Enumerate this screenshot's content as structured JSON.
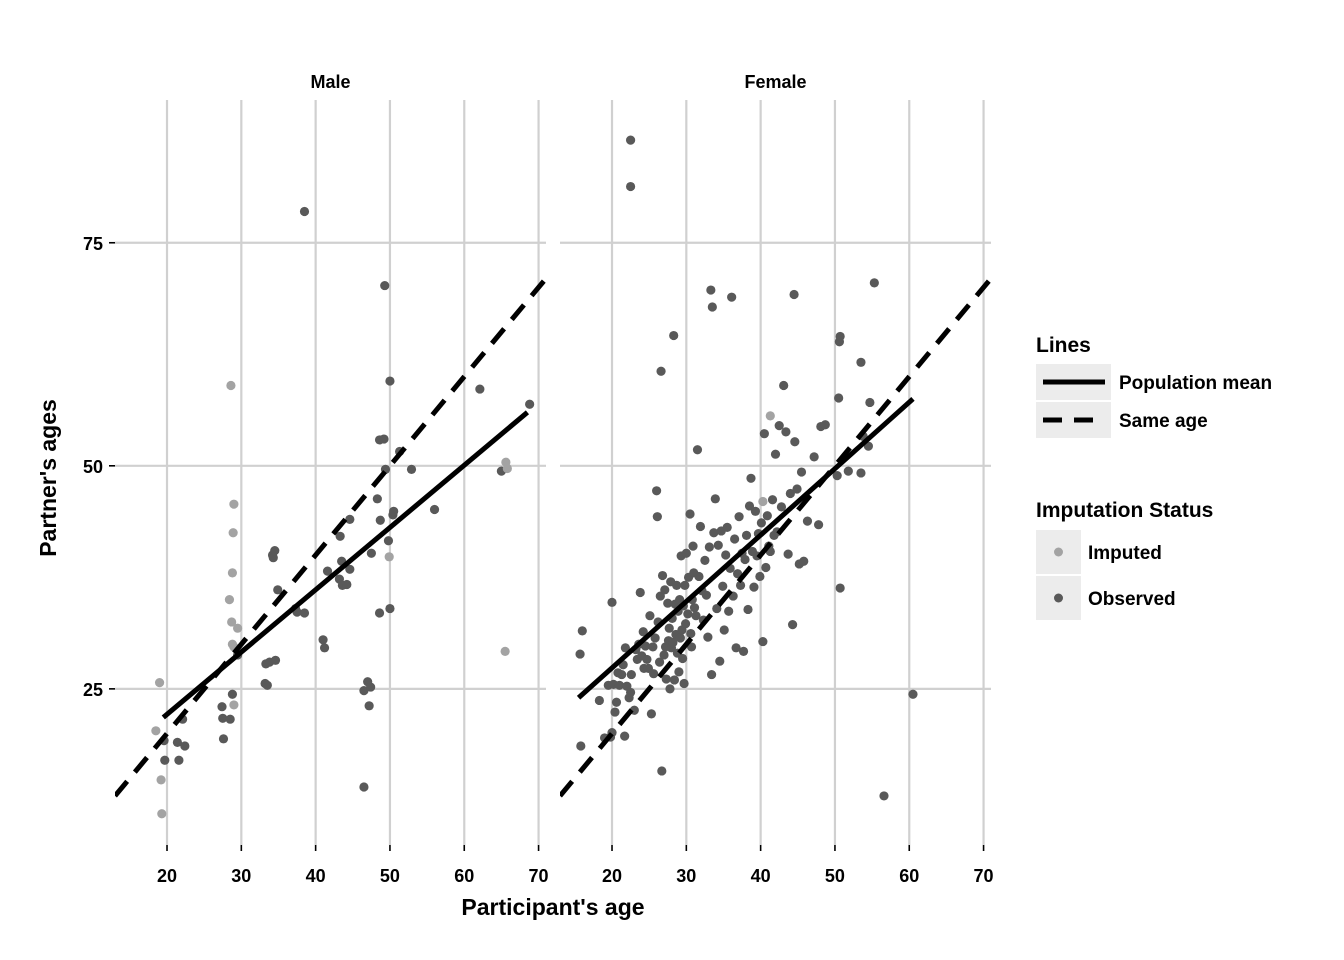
{
  "chart_data": {
    "type": "scatter",
    "xlabel": "Participant's age",
    "ylabel": "Partner's ages",
    "xlim": [
      13,
      71
    ],
    "ylim": [
      7.5,
      91
    ],
    "x_ticks": [
      20,
      30,
      40,
      50,
      60,
      70
    ],
    "y_ticks": [
      25,
      50,
      75
    ],
    "grid": true,
    "legend_position": "right",
    "colors": {
      "imputed": "#a3a3a3",
      "observed": "#595959",
      "grid": "#d0d0d0",
      "line": "#000000"
    },
    "legend": {
      "lines": {
        "title": "Lines",
        "items": [
          {
            "label": "Population mean",
            "style": "solid"
          },
          {
            "label": "Same age",
            "style": "dashed"
          }
        ]
      },
      "status": {
        "title": "Imputation Status",
        "items": [
          {
            "label": "Imputed",
            "key": "imputed"
          },
          {
            "label": "Observed",
            "key": "observed"
          }
        ]
      }
    },
    "panels": [
      {
        "label": "Male",
        "population_mean": [
          [
            19.5,
            21.8
          ],
          [
            68.5,
            56.0
          ]
        ],
        "same_age": [
          [
            13,
            13
          ],
          [
            71,
            71
          ]
        ],
        "imputed": [
          [
            18.5,
            20.3
          ],
          [
            19.0,
            25.7
          ],
          [
            19.2,
            14.8
          ],
          [
            19.3,
            11.0
          ],
          [
            28.4,
            35.0
          ],
          [
            28.6,
            59.0
          ],
          [
            28.7,
            32.5
          ],
          [
            28.8,
            38.0
          ],
          [
            28.9,
            42.5
          ],
          [
            29.0,
            45.7
          ],
          [
            28.8,
            30.0
          ],
          [
            29.0,
            29.7
          ],
          [
            29.0,
            23.2
          ],
          [
            29.5,
            31.8
          ],
          [
            49.9,
            39.8
          ],
          [
            65.5,
            29.2
          ],
          [
            65.6,
            50.4
          ],
          [
            65.8,
            49.7
          ]
        ],
        "observed": [
          [
            19.6,
            19.2
          ],
          [
            19.7,
            17.0
          ],
          [
            21.4,
            19.0
          ],
          [
            21.6,
            17.0
          ],
          [
            22.1,
            21.6
          ],
          [
            22.4,
            18.6
          ],
          [
            27.4,
            23.0
          ],
          [
            27.5,
            21.7
          ],
          [
            27.6,
            19.4
          ],
          [
            28.5,
            21.6
          ],
          [
            28.8,
            24.4
          ],
          [
            29.5,
            28.8
          ],
          [
            33.2,
            25.6
          ],
          [
            33.3,
            27.8
          ],
          [
            33.5,
            25.4
          ],
          [
            33.8,
            28.0
          ],
          [
            34.2,
            40.0
          ],
          [
            34.3,
            39.7
          ],
          [
            34.5,
            40.5
          ],
          [
            34.6,
            28.2
          ],
          [
            34.9,
            36.1
          ],
          [
            37.3,
            34.0
          ],
          [
            37.5,
            33.6
          ],
          [
            38.5,
            33.5
          ],
          [
            38.5,
            78.5
          ],
          [
            41.0,
            30.5
          ],
          [
            41.2,
            29.6
          ],
          [
            41.6,
            38.2
          ],
          [
            43.2,
            37.3
          ],
          [
            43.3,
            42.1
          ],
          [
            43.5,
            39.3
          ],
          [
            43.6,
            36.6
          ],
          [
            44.2,
            36.7
          ],
          [
            44.6,
            38.4
          ],
          [
            44.6,
            44.0
          ],
          [
            46.5,
            14.0
          ],
          [
            46.5,
            24.8
          ],
          [
            47.0,
            25.8
          ],
          [
            47.2,
            23.1
          ],
          [
            47.4,
            25.2
          ],
          [
            47.5,
            40.2
          ],
          [
            48.3,
            46.3
          ],
          [
            48.6,
            33.5
          ],
          [
            48.6,
            52.9
          ],
          [
            48.7,
            43.9
          ],
          [
            49.2,
            53.0
          ],
          [
            49.3,
            70.2
          ],
          [
            49.4,
            49.6
          ],
          [
            49.8,
            41.6
          ],
          [
            50.0,
            34.0
          ],
          [
            50.0,
            59.5
          ],
          [
            50.4,
            44.5
          ],
          [
            50.5,
            44.9
          ],
          [
            51.3,
            51.6
          ],
          [
            52.9,
            49.6
          ],
          [
            56.0,
            45.1
          ],
          [
            62.1,
            58.6
          ],
          [
            65.0,
            49.4
          ],
          [
            68.8,
            56.9
          ]
        ]
      },
      {
        "label": "Female",
        "population_mean": [
          [
            15.5,
            24.0
          ],
          [
            60.5,
            57.5
          ]
        ],
        "same_age": [
          [
            13,
            13
          ],
          [
            71,
            71
          ]
        ],
        "imputed": [
          [
            41.3,
            55.6
          ],
          [
            40.3,
            46.0
          ]
        ],
        "observed": [
          [
            22.5,
            86.5
          ],
          [
            22.5,
            81.3
          ],
          [
            16.0,
            31.5
          ],
          [
            15.7,
            28.9
          ],
          [
            15.8,
            18.6
          ],
          [
            18.3,
            23.7
          ],
          [
            19.0,
            19.5
          ],
          [
            19.5,
            25.4
          ],
          [
            19.8,
            19.6
          ],
          [
            20.0,
            20.1
          ],
          [
            20.0,
            34.7
          ],
          [
            20.2,
            25.5
          ],
          [
            20.4,
            22.4
          ],
          [
            20.6,
            23.5
          ],
          [
            20.8,
            26.8
          ],
          [
            21.0,
            25.4
          ],
          [
            21.3,
            26.6
          ],
          [
            21.5,
            27.7
          ],
          [
            21.7,
            19.7
          ],
          [
            21.8,
            29.6
          ],
          [
            22.0,
            25.3
          ],
          [
            22.3,
            24.0
          ],
          [
            22.5,
            24.6
          ],
          [
            22.6,
            26.6
          ],
          [
            23.0,
            22.6
          ],
          [
            23.2,
            29.4
          ],
          [
            23.4,
            28.3
          ],
          [
            23.6,
            30.0
          ],
          [
            23.8,
            35.8
          ],
          [
            24.0,
            28.7
          ],
          [
            24.2,
            31.4
          ],
          [
            24.3,
            27.3
          ],
          [
            24.5,
            29.8
          ],
          [
            24.7,
            28.3
          ],
          [
            24.9,
            27.3
          ],
          [
            25.1,
            33.2
          ],
          [
            25.3,
            22.2
          ],
          [
            25.5,
            29.7
          ],
          [
            25.6,
            26.7
          ],
          [
            25.8,
            30.7
          ],
          [
            26.0,
            47.2
          ],
          [
            26.1,
            44.3
          ],
          [
            26.2,
            32.5
          ],
          [
            26.4,
            28.0
          ],
          [
            26.5,
            35.4
          ],
          [
            26.6,
            60.6
          ],
          [
            26.7,
            15.8
          ],
          [
            26.8,
            37.7
          ],
          [
            27.0,
            28.8
          ],
          [
            27.1,
            36.1
          ],
          [
            27.2,
            29.7
          ],
          [
            27.3,
            26.1
          ],
          [
            27.5,
            34.6
          ],
          [
            27.6,
            30.4
          ],
          [
            27.7,
            31.8
          ],
          [
            27.8,
            25.0
          ],
          [
            27.9,
            37.0
          ],
          [
            28.0,
            29.6
          ],
          [
            28.1,
            32.9
          ],
          [
            28.2,
            30.2
          ],
          [
            28.3,
            64.6
          ],
          [
            28.4,
            26.0
          ],
          [
            28.5,
            34.5
          ],
          [
            28.6,
            31.1
          ],
          [
            28.7,
            36.6
          ],
          [
            28.8,
            29.0
          ],
          [
            28.9,
            33.7
          ],
          [
            29.0,
            26.9
          ],
          [
            29.1,
            35.0
          ],
          [
            29.2,
            30.7
          ],
          [
            29.3,
            39.9
          ],
          [
            29.4,
            31.6
          ],
          [
            29.5,
            28.4
          ],
          [
            29.6,
            34.3
          ],
          [
            29.7,
            25.6
          ],
          [
            29.8,
            36.6
          ],
          [
            29.9,
            32.3
          ],
          [
            30.0,
            40.2
          ],
          [
            30.2,
            33.4
          ],
          [
            30.3,
            37.5
          ],
          [
            30.5,
            44.6
          ],
          [
            30.6,
            31.2
          ],
          [
            30.7,
            29.7
          ],
          [
            30.8,
            35.0
          ],
          [
            30.9,
            41.0
          ],
          [
            31.0,
            38.0
          ],
          [
            31.1,
            34.1
          ],
          [
            31.3,
            33.2
          ],
          [
            31.5,
            51.8
          ],
          [
            31.7,
            37.6
          ],
          [
            31.9,
            43.2
          ],
          [
            32.1,
            36.0
          ],
          [
            32.3,
            32.7
          ],
          [
            32.5,
            39.4
          ],
          [
            32.7,
            35.5
          ],
          [
            32.9,
            30.8
          ],
          [
            33.1,
            40.9
          ],
          [
            33.3,
            69.7
          ],
          [
            33.4,
            26.6
          ],
          [
            33.5,
            67.8
          ],
          [
            33.7,
            42.5
          ],
          [
            33.9,
            46.3
          ],
          [
            34.1,
            34.0
          ],
          [
            34.3,
            41.1
          ],
          [
            34.5,
            28.1
          ],
          [
            34.7,
            42.7
          ],
          [
            34.9,
            36.5
          ],
          [
            35.1,
            31.6
          ],
          [
            35.3,
            40.0
          ],
          [
            35.5,
            43.1
          ],
          [
            35.7,
            33.7
          ],
          [
            35.9,
            38.5
          ],
          [
            36.1,
            68.9
          ],
          [
            36.3,
            35.4
          ],
          [
            36.5,
            41.8
          ],
          [
            36.7,
            29.6
          ],
          [
            36.9,
            37.9
          ],
          [
            37.1,
            44.3
          ],
          [
            37.3,
            36.6
          ],
          [
            37.5,
            40.2
          ],
          [
            37.7,
            29.2
          ],
          [
            37.9,
            39.5
          ],
          [
            38.1,
            42.2
          ],
          [
            38.3,
            33.9
          ],
          [
            38.5,
            45.5
          ],
          [
            38.7,
            48.6
          ],
          [
            38.9,
            40.4
          ],
          [
            39.1,
            36.4
          ],
          [
            39.3,
            44.9
          ],
          [
            39.5,
            39.9
          ],
          [
            39.7,
            42.4
          ],
          [
            39.9,
            37.6
          ],
          [
            40.1,
            43.6
          ],
          [
            40.3,
            30.3
          ],
          [
            40.5,
            53.6
          ],
          [
            40.7,
            38.6
          ],
          [
            40.9,
            44.4
          ],
          [
            41.1,
            41.0
          ],
          [
            41.3,
            40.4
          ],
          [
            41.6,
            46.2
          ],
          [
            41.8,
            42.2
          ],
          [
            42.0,
            51.3
          ],
          [
            42.2,
            42.6
          ],
          [
            42.5,
            54.5
          ],
          [
            42.8,
            45.4
          ],
          [
            43.1,
            59.0
          ],
          [
            43.4,
            53.8
          ],
          [
            43.7,
            40.1
          ],
          [
            44.0,
            46.9
          ],
          [
            44.3,
            32.2
          ],
          [
            44.5,
            69.2
          ],
          [
            44.6,
            52.7
          ],
          [
            44.9,
            47.4
          ],
          [
            45.2,
            39.0
          ],
          [
            45.5,
            49.3
          ],
          [
            45.8,
            39.3
          ],
          [
            46.3,
            43.8
          ],
          [
            47.2,
            51.0
          ],
          [
            47.8,
            43.4
          ],
          [
            48.1,
            54.4
          ],
          [
            48.7,
            54.6
          ],
          [
            50.3,
            48.9
          ],
          [
            50.5,
            57.6
          ],
          [
            50.6,
            63.9
          ],
          [
            50.7,
            64.5
          ],
          [
            50.7,
            36.3
          ],
          [
            51.8,
            49.4
          ],
          [
            53.5,
            49.2
          ],
          [
            53.5,
            61.6
          ],
          [
            53.8,
            53.3
          ],
          [
            54.5,
            52.2
          ],
          [
            54.7,
            57.1
          ],
          [
            55.3,
            70.5
          ],
          [
            56.6,
            13.0
          ],
          [
            60.5,
            24.4
          ]
        ]
      }
    ]
  }
}
